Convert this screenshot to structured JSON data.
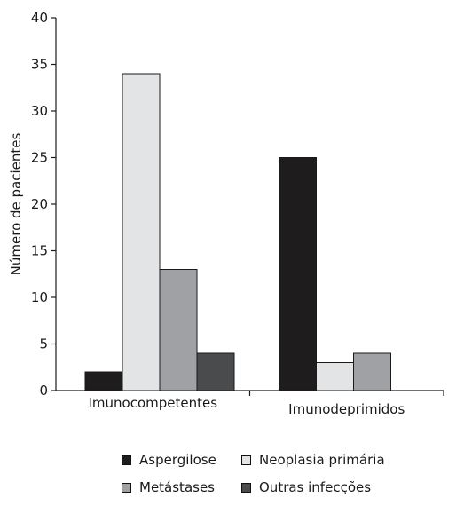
{
  "chart_data": {
    "type": "bar",
    "title": "",
    "xlabel": "",
    "ylabel": "Número de pacientes",
    "ylim": [
      0,
      40
    ],
    "yticks": [
      0,
      5,
      10,
      15,
      20,
      25,
      30,
      35,
      40
    ],
    "categories": [
      "Imunocompetentes",
      "Imunodeprimidos"
    ],
    "series": [
      {
        "name": "Aspergilose",
        "color": "#1f1c1d",
        "values": [
          2,
          25
        ]
      },
      {
        "name": "Neoplasia primária",
        "color": "#e2e4e6",
        "values": [
          34,
          3
        ]
      },
      {
        "name": "Metástases",
        "color": "#9fa1a4",
        "values": [
          13,
          4
        ]
      },
      {
        "name": "Outras infecções",
        "color": "#4a4b4d",
        "values": [
          4,
          null
        ]
      }
    ],
    "grid": false,
    "legend_position": "bottom"
  }
}
